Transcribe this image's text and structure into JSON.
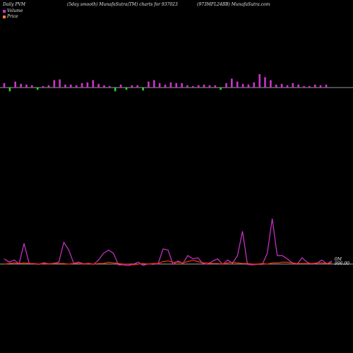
{
  "header": {
    "left": "Daily PVM",
    "center": "(5day smooth) MunafaSutra(TM) charts for 937023",
    "right": "(973MFL24BB) MunafaSutra.com"
  },
  "legend": {
    "volume_label": "Volume",
    "price_label": "Price",
    "volume_color": "#cc33cc",
    "price_color": "#ff8040"
  },
  "chart_data": {
    "type": "bar+line",
    "up_color": "#cc33cc",
    "down_color": "#33cc33",
    "volume_bars": [
      {
        "v": 6,
        "d": "up"
      },
      {
        "v": -5,
        "d": "down"
      },
      {
        "v": 8,
        "d": "up"
      },
      {
        "v": 5,
        "d": "up"
      },
      {
        "v": 4,
        "d": "up"
      },
      {
        "v": 3,
        "d": "up"
      },
      {
        "v": -3,
        "d": "down"
      },
      {
        "v": 2,
        "d": "up"
      },
      {
        "v": 3,
        "d": "up"
      },
      {
        "v": 10,
        "d": "up"
      },
      {
        "v": 11,
        "d": "up"
      },
      {
        "v": 4,
        "d": "up"
      },
      {
        "v": 4,
        "d": "up"
      },
      {
        "v": 3,
        "d": "up"
      },
      {
        "v": 6,
        "d": "up"
      },
      {
        "v": 7,
        "d": "up"
      },
      {
        "v": 10,
        "d": "up"
      },
      {
        "v": 5,
        "d": "up"
      },
      {
        "v": 3,
        "d": "up"
      },
      {
        "v": 2,
        "d": "up"
      },
      {
        "v": -5,
        "d": "down"
      },
      {
        "v": 4,
        "d": "up"
      },
      {
        "v": -3,
        "d": "down"
      },
      {
        "v": 3,
        "d": "up"
      },
      {
        "v": 3,
        "d": "up"
      },
      {
        "v": -4,
        "d": "down"
      },
      {
        "v": 8,
        "d": "up"
      },
      {
        "v": 10,
        "d": "up"
      },
      {
        "v": 6,
        "d": "up"
      },
      {
        "v": 4,
        "d": "up"
      },
      {
        "v": 7,
        "d": "up"
      },
      {
        "v": 6,
        "d": "up"
      },
      {
        "v": 6,
        "d": "up"
      },
      {
        "v": 3,
        "d": "up"
      },
      {
        "v": 2,
        "d": "up"
      },
      {
        "v": 3,
        "d": "up"
      },
      {
        "v": 4,
        "d": "up"
      },
      {
        "v": 3,
        "d": "up"
      },
      {
        "v": 3,
        "d": "up"
      },
      {
        "v": -3,
        "d": "down"
      },
      {
        "v": 6,
        "d": "up"
      },
      {
        "v": 12,
        "d": "up"
      },
      {
        "v": 8,
        "d": "up"
      },
      {
        "v": 5,
        "d": "up"
      },
      {
        "v": 4,
        "d": "up"
      },
      {
        "v": 7,
        "d": "up"
      },
      {
        "v": 18,
        "d": "up"
      },
      {
        "v": 14,
        "d": "up"
      },
      {
        "v": 10,
        "d": "up"
      },
      {
        "v": 4,
        "d": "up"
      },
      {
        "v": 5,
        "d": "up"
      },
      {
        "v": 3,
        "d": "up"
      },
      {
        "v": 6,
        "d": "up"
      },
      {
        "v": 4,
        "d": "up"
      },
      {
        "v": 2,
        "d": "up"
      },
      {
        "v": 2,
        "d": "up"
      },
      {
        "v": 4,
        "d": "up"
      },
      {
        "v": 3,
        "d": "up"
      },
      {
        "v": 4,
        "d": "up"
      }
    ],
    "volume_smooth": [
      12,
      6,
      10,
      3,
      40,
      4,
      3,
      2,
      5,
      3,
      4,
      6,
      42,
      28,
      4,
      6,
      3,
      4,
      2,
      10,
      22,
      28,
      22,
      1,
      1,
      0,
      2,
      6,
      0,
      3,
      2,
      3,
      30,
      28,
      2,
      8,
      4,
      18,
      12,
      14,
      4,
      2,
      8,
      12,
      2,
      10,
      4,
      18,
      62,
      2,
      1,
      2,
      2,
      22,
      85,
      18,
      18,
      12,
      5,
      2,
      14,
      6,
      2,
      4,
      10,
      3,
      8
    ],
    "price_line": [
      1,
      2,
      3,
      2,
      3,
      2,
      2,
      1,
      2,
      1,
      2,
      2,
      2,
      1,
      2,
      2,
      1,
      2,
      1,
      2,
      2,
      4,
      3,
      2,
      1,
      1,
      0,
      1,
      2,
      1,
      2,
      2,
      5,
      6,
      4,
      4,
      3,
      5,
      7,
      5,
      3,
      3,
      2,
      2,
      1,
      3,
      4,
      3,
      2,
      2,
      1,
      1,
      2,
      1,
      3,
      3,
      4,
      4,
      3,
      2,
      2,
      2,
      2,
      3,
      3,
      2,
      3
    ],
    "price_right_label": "996.00",
    "volume_right_label": "0M"
  }
}
